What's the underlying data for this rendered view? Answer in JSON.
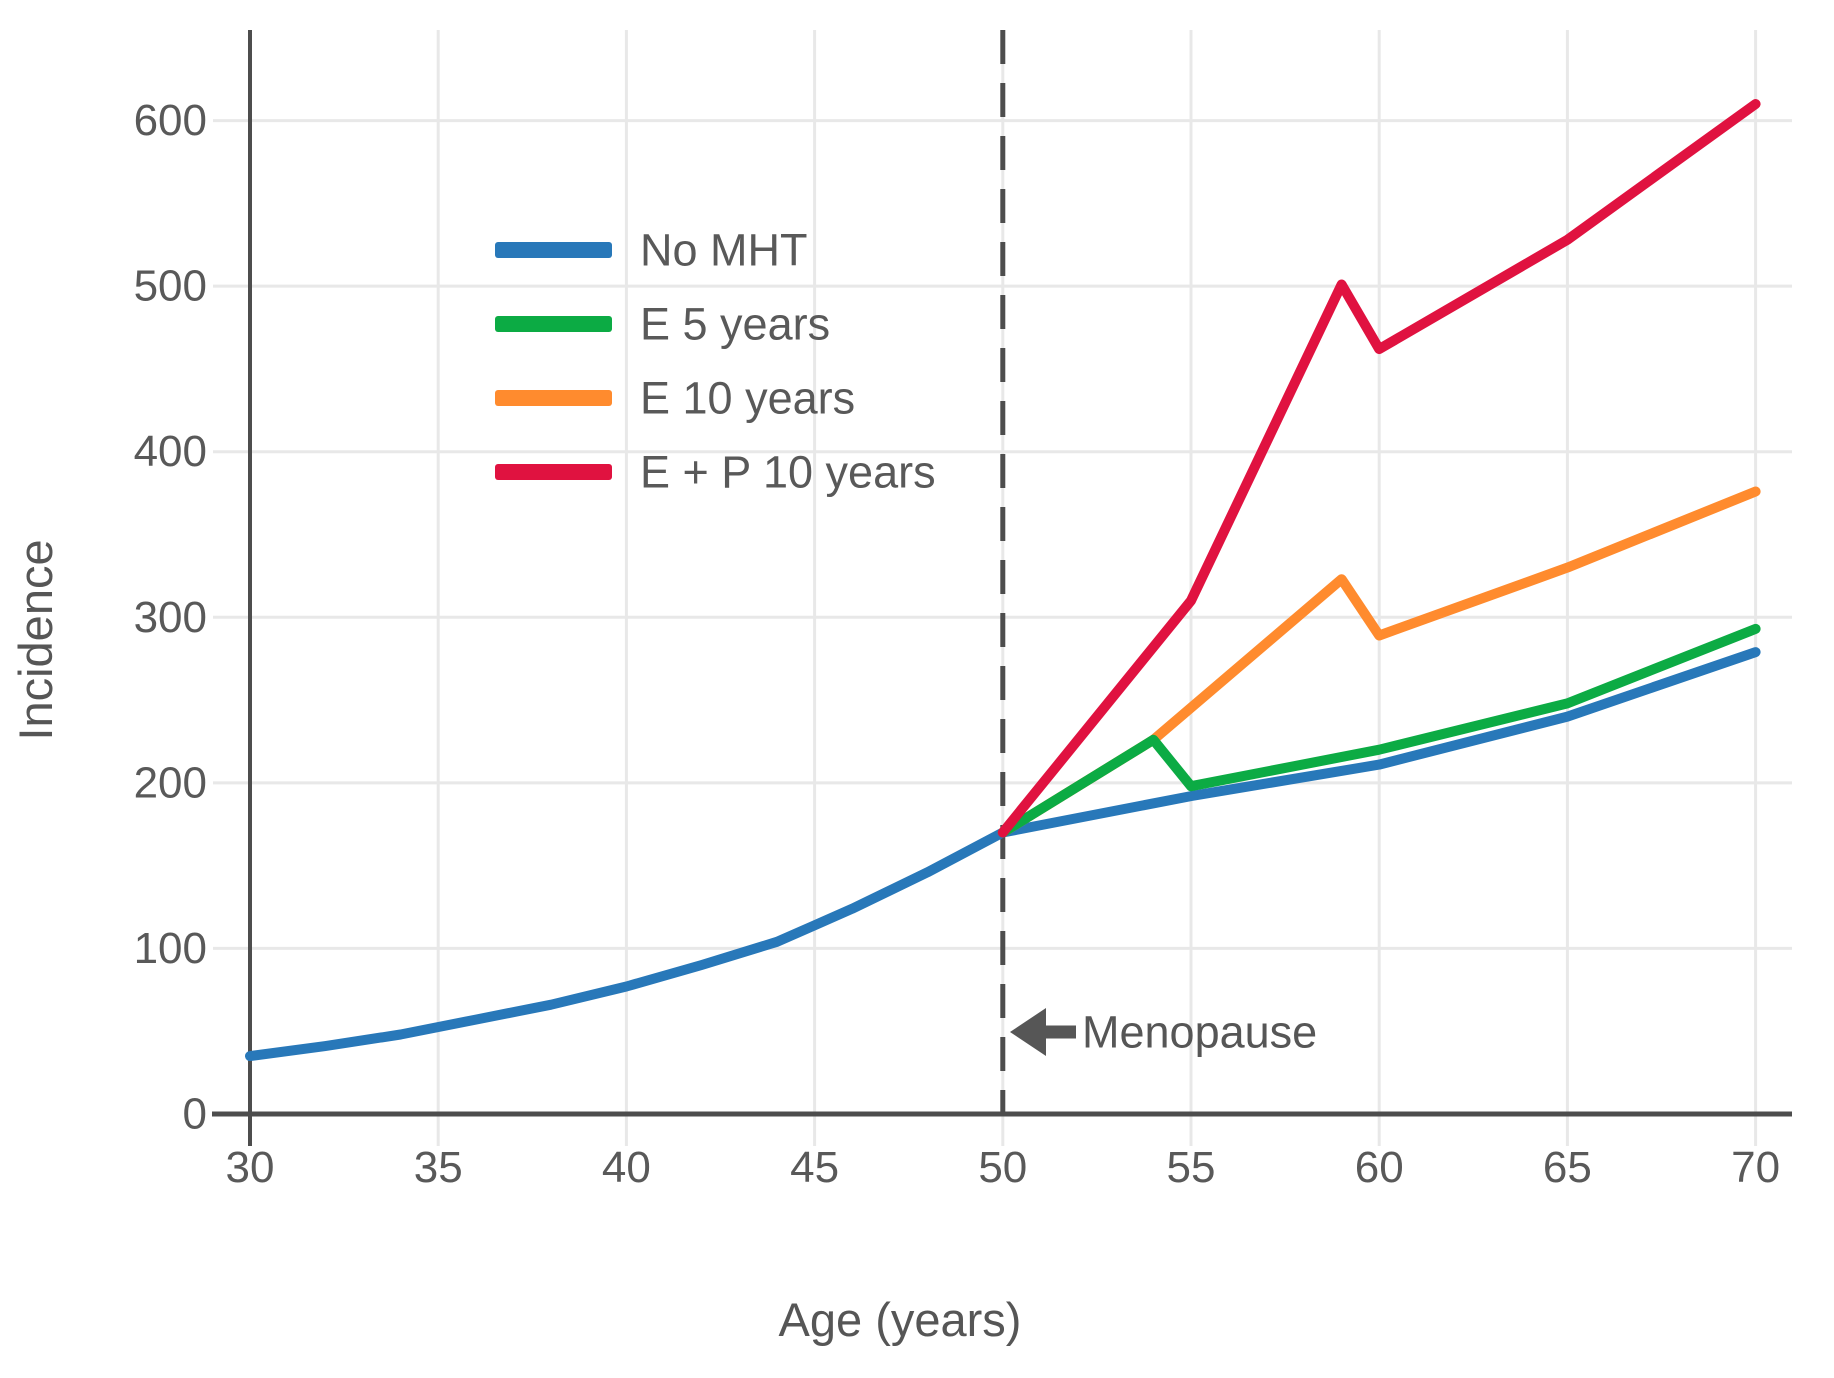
{
  "chart_data": {
    "type": "line",
    "title": "",
    "xlabel": "Age (years)",
    "ylabel": "Incidence",
    "xlim": [
      30,
      70
    ],
    "ylim": [
      0,
      655
    ],
    "x_ticks": [
      30,
      35,
      40,
      45,
      50,
      55,
      60,
      65,
      70
    ],
    "y_ticks": [
      0,
      100,
      200,
      300,
      400,
      500,
      600
    ],
    "grid": true,
    "legend_position": "upper-left-inside",
    "series": [
      {
        "name": "No MHT",
        "color": "#2878b9",
        "points": [
          [
            30,
            35
          ],
          [
            32,
            41
          ],
          [
            34,
            48
          ],
          [
            36,
            57
          ],
          [
            38,
            66
          ],
          [
            40,
            77
          ],
          [
            42,
            90
          ],
          [
            44,
            104
          ],
          [
            45,
            114
          ],
          [
            46,
            124
          ],
          [
            48,
            146
          ],
          [
            50,
            170
          ],
          [
            55,
            192
          ],
          [
            60,
            211
          ],
          [
            65,
            240
          ],
          [
            70,
            279
          ]
        ]
      },
      {
        "name": "E 5 years",
        "color": "#0cab44",
        "points": [
          [
            50,
            170
          ],
          [
            54,
            226
          ],
          [
            55,
            198
          ],
          [
            60,
            220
          ],
          [
            65,
            248
          ],
          [
            70,
            293
          ]
        ]
      },
      {
        "name": "E 10 years",
        "color": "#ff8b2e",
        "points": [
          [
            50,
            170
          ],
          [
            54,
            226
          ],
          [
            59,
            323
          ],
          [
            60,
            289
          ],
          [
            65,
            330
          ],
          [
            70,
            376
          ]
        ]
      },
      {
        "name": "E + P 10 years",
        "color": "#e01240",
        "points": [
          [
            50,
            170
          ],
          [
            55,
            310
          ],
          [
            59,
            501
          ],
          [
            60,
            462
          ],
          [
            65,
            528
          ],
          [
            70,
            610
          ]
        ]
      }
    ],
    "draw_order": [
      "No MHT",
      "E 10 years",
      "E 5 years",
      "E + P 10 years"
    ],
    "reference_line": {
      "x": 50,
      "style": "dashed"
    },
    "annotations": [
      {
        "text": "Menopause",
        "arrow": "left",
        "at_x": 50
      }
    ],
    "colors": {
      "axis": "#4d4d4d",
      "grid": "#e8e8e8",
      "tick_text": "#595959",
      "annotation_text": "#565656"
    }
  }
}
